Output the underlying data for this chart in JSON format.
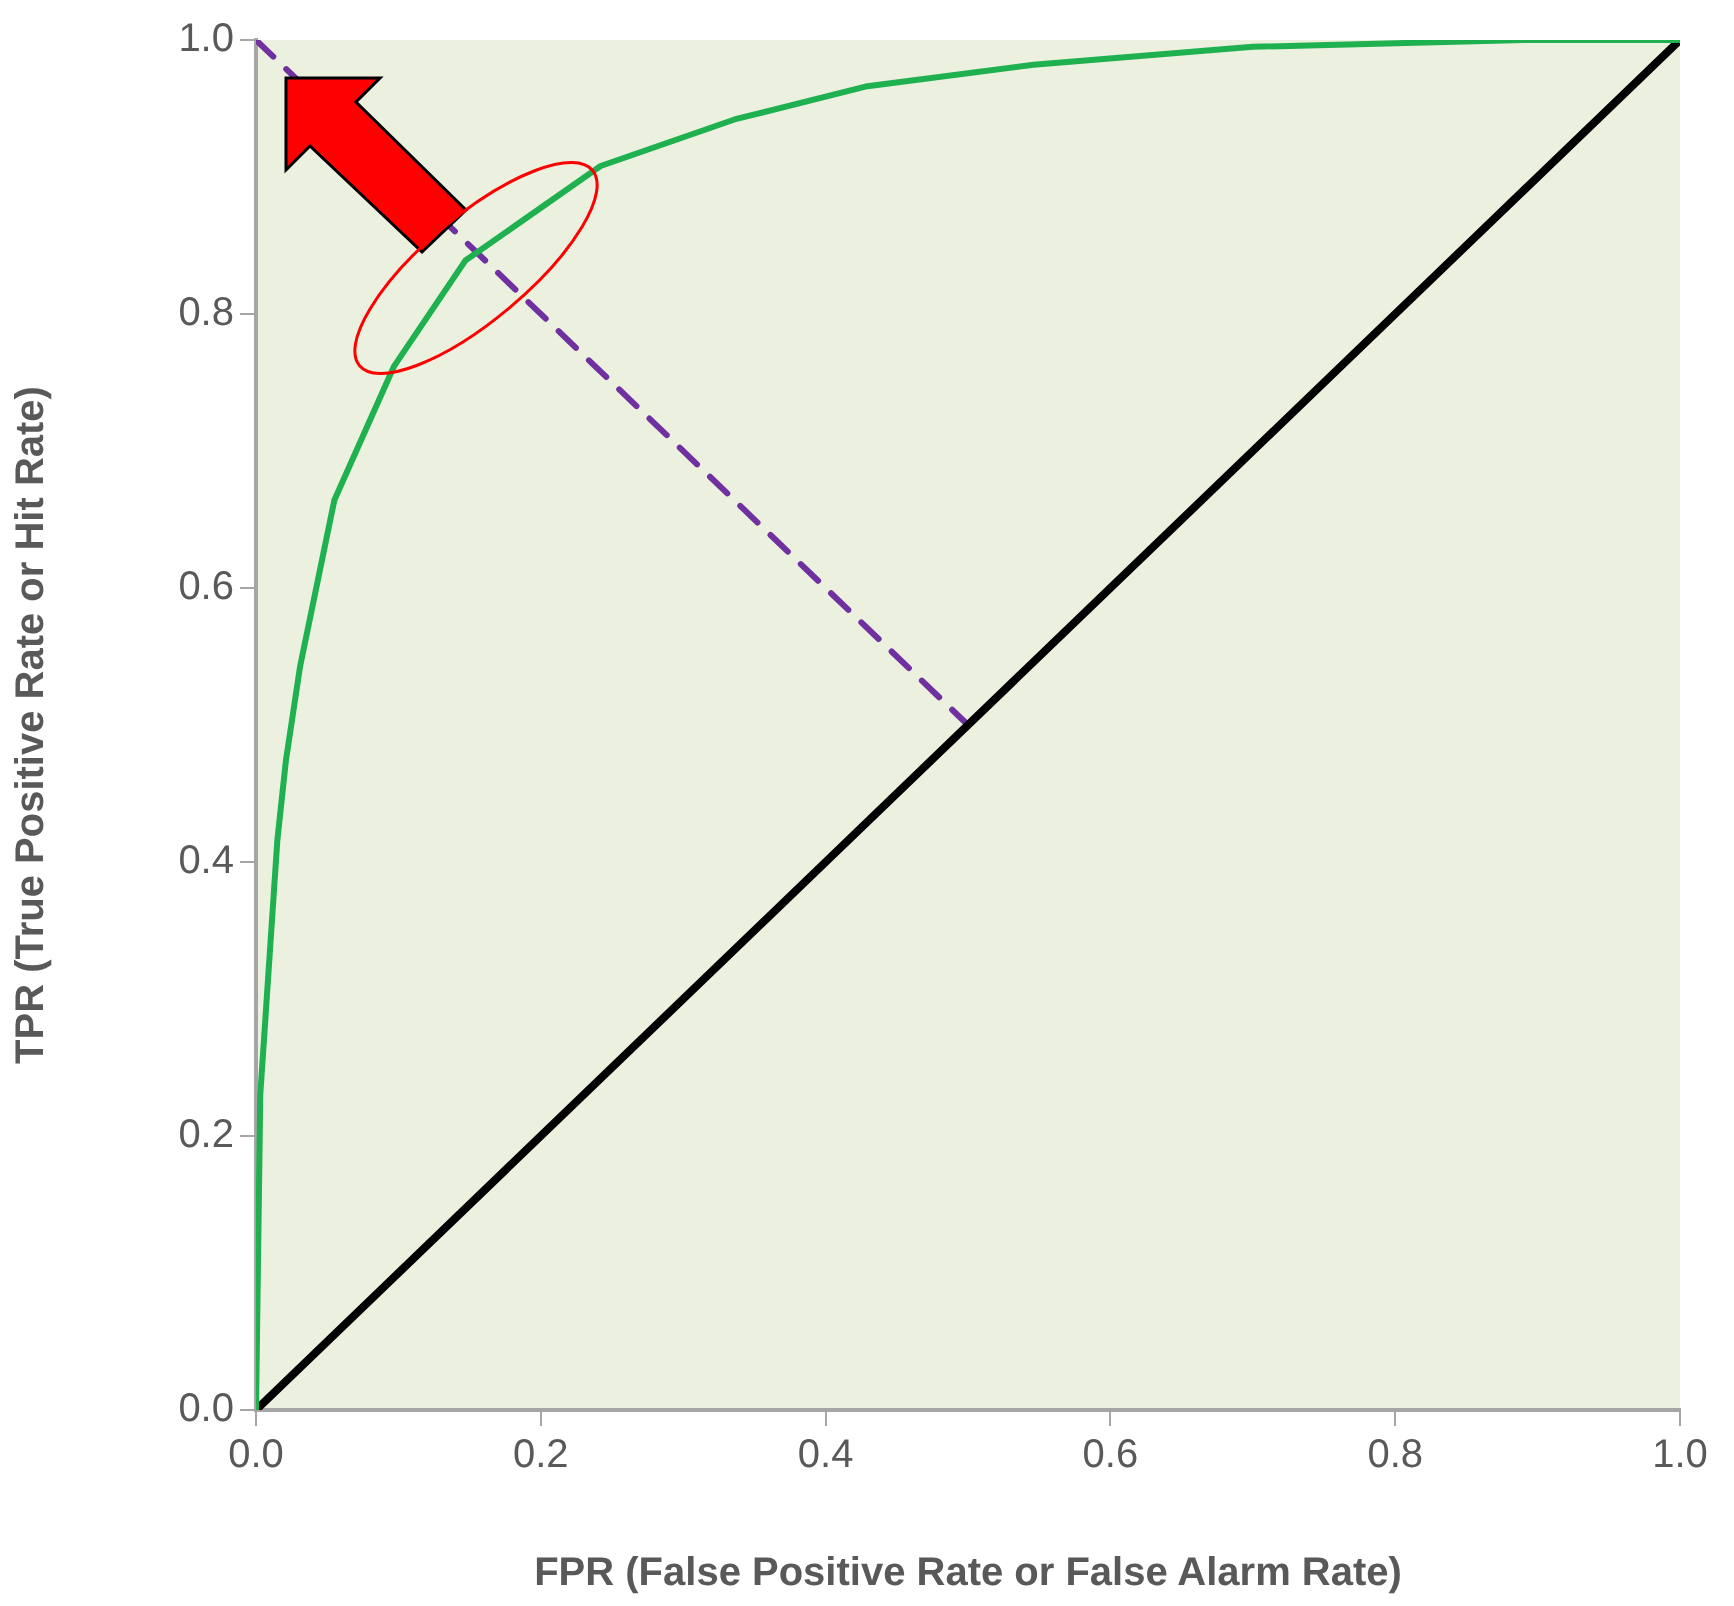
{
  "chart_data": {
    "type": "line",
    "xlabel": "FPR (False Positive Rate or False Alarm Rate)",
    "ylabel": "TPR (True Positive Rate or Hit Rate)",
    "xlim": [
      0,
      1
    ],
    "ylim": [
      0,
      1
    ],
    "xticks": [
      {
        "value": 0,
        "label": "0.0"
      },
      {
        "value": 0.2,
        "label": "0.2"
      },
      {
        "value": 0.4,
        "label": "0.4"
      },
      {
        "value": 0.6,
        "label": "0.6"
      },
      {
        "value": 0.8,
        "label": "0.8"
      },
      {
        "value": 1,
        "label": "1.0"
      }
    ],
    "yticks": [
      {
        "value": 0,
        "label": "0.0"
      },
      {
        "value": 0.2,
        "label": "0.2"
      },
      {
        "value": 0.4,
        "label": "0.4"
      },
      {
        "value": 0.6,
        "label": "0.6"
      },
      {
        "value": 0.8,
        "label": "0.8"
      },
      {
        "value": 1,
        "label": "1.0"
      }
    ],
    "grid": false,
    "legend": false,
    "marker": "none",
    "series": [
      {
        "color": "#1fb050",
        "x": [
          0,
          0.003,
          0.015,
          0.021,
          0.031,
          0.055,
          0.097,
          0.147,
          0.242,
          0.336,
          0.428,
          0.546,
          0.7,
          0.89,
          1
        ],
        "values": [
          0,
          0.23,
          0.416,
          0.474,
          0.543,
          0.664,
          0.762,
          0.839,
          0.908,
          0.942,
          0.966,
          0.982,
          0.995,
          1,
          1
        ]
      },
      {
        "color": "#000000",
        "x": [
          0,
          1
        ],
        "values": [
          0,
          1
        ]
      },
      {
        "color": "#7030a0",
        "line_style": "dashed",
        "x": [
          0,
          0.5
        ],
        "values": [
          1,
          0.5
        ]
      }
    ]
  }
}
